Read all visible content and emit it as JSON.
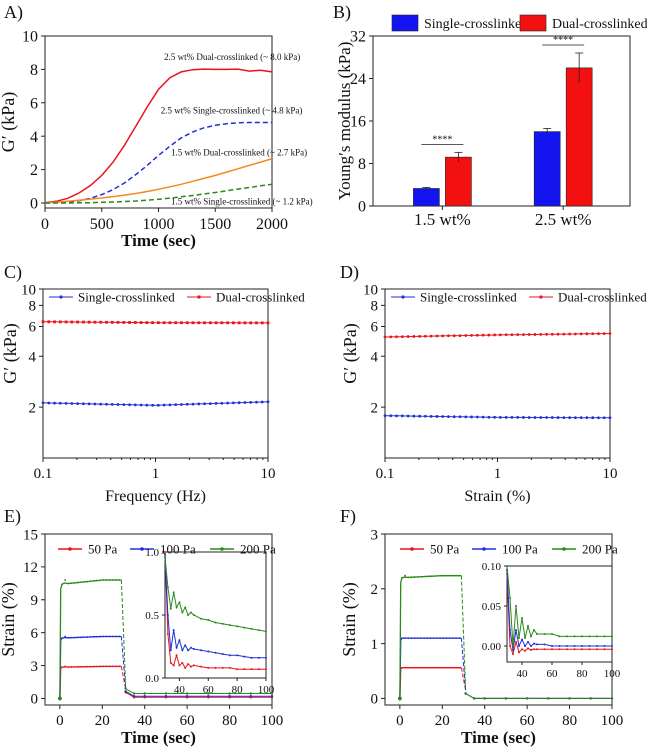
{
  "chart_data": [
    {
      "id": "A",
      "panel_label": "A)",
      "type": "line",
      "xlabel": "Time (sec)",
      "ylabel": "G′ (kPa)",
      "xlim": [
        0,
        2000
      ],
      "ylim": [
        -0.3,
        10
      ],
      "xticks": [
        0,
        500,
        1000,
        1500,
        2000
      ],
      "yticks": [
        0,
        2,
        4,
        6,
        8,
        10
      ],
      "series": [
        {
          "name": "2.5 wt% Dual-crosslinked",
          "color": "#e8141c",
          "dash": "",
          "label": "2.5 wt% Dual-crosslinked  (~ 8.0 kPa)",
          "label_x": 1050,
          "label_y": 8.55,
          "x": [
            0,
            100,
            200,
            300,
            400,
            500,
            600,
            700,
            800,
            900,
            1000,
            1100,
            1200,
            1300,
            1400,
            1500,
            1600,
            1700,
            1800,
            1900,
            2000
          ],
          "y": [
            0.02,
            0.1,
            0.28,
            0.6,
            1.05,
            1.65,
            2.45,
            3.45,
            4.6,
            5.75,
            6.8,
            7.5,
            7.85,
            7.98,
            8.02,
            8.0,
            8.0,
            8.02,
            7.9,
            7.95,
            7.85
          ]
        },
        {
          "name": "2.5 wt% Single-crosslinked",
          "color": "#2030d8",
          "dash": "5,3",
          "label": "2.5 wt% Single-crosslinked (~ 4.8 kPa)",
          "label_x": 1020,
          "label_y": 5.35,
          "x": [
            0,
            100,
            200,
            300,
            400,
            500,
            600,
            700,
            800,
            900,
            1000,
            1100,
            1200,
            1300,
            1400,
            1500,
            1600,
            1700,
            1800,
            1900,
            2000
          ],
          "y": [
            0,
            0.02,
            0.06,
            0.14,
            0.28,
            0.5,
            0.8,
            1.2,
            1.7,
            2.25,
            2.85,
            3.4,
            3.9,
            4.25,
            4.5,
            4.65,
            4.75,
            4.8,
            4.82,
            4.82,
            4.82
          ]
        },
        {
          "name": "1.5 wt% Dual-crosslinked",
          "color": "#f58a1a",
          "dash": "",
          "label": "1.5 wt% Dual-crosslinked (~ 2.7 kPa)",
          "label_x": 1110,
          "label_y": 2.85,
          "x": [
            0,
            100,
            200,
            300,
            400,
            500,
            600,
            700,
            800,
            900,
            1000,
            1100,
            1200,
            1300,
            1400,
            1500,
            1600,
            1700,
            1800,
            1900,
            2000
          ],
          "y": [
            0.02,
            0.05,
            0.1,
            0.16,
            0.23,
            0.3,
            0.38,
            0.47,
            0.57,
            0.69,
            0.82,
            0.97,
            1.12,
            1.3,
            1.47,
            1.65,
            1.85,
            2.05,
            2.25,
            2.45,
            2.65
          ]
        },
        {
          "name": "1.5 wt% Single-crosslinked",
          "color": "#2a8a1a",
          "dash": "5,3",
          "label": "1.5 wt% Single-crosslinked (~ 1.2 kPa)",
          "label_x": 1110,
          "label_y": -0.08,
          "x": [
            0,
            100,
            200,
            300,
            400,
            500,
            600,
            700,
            800,
            900,
            1000,
            1100,
            1200,
            1300,
            1400,
            1500,
            1600,
            1700,
            1800,
            1900,
            2000
          ],
          "y": [
            0,
            0,
            0,
            0.01,
            0.02,
            0.04,
            0.06,
            0.09,
            0.12,
            0.17,
            0.22,
            0.29,
            0.37,
            0.45,
            0.54,
            0.63,
            0.73,
            0.83,
            0.93,
            1.03,
            1.12
          ]
        }
      ]
    },
    {
      "id": "B",
      "panel_label": "B)",
      "type": "bar",
      "ylabel": "Young′s modulus (kPa)",
      "categories": [
        "1.5 wt%",
        "2.5 wt%"
      ],
      "ylim": [
        0,
        32
      ],
      "yticks": [
        0,
        8,
        16,
        24,
        32
      ],
      "series": [
        {
          "name": "Single-crosslinked",
          "color": "#1414f0",
          "values": [
            3.3,
            14.0
          ],
          "errors": [
            0.2,
            0.6
          ]
        },
        {
          "name": "Dual-crosslinked",
          "color": "#f21010",
          "values": [
            9.2,
            26.0
          ],
          "errors": [
            0.9,
            2.8
          ]
        }
      ],
      "significance": [
        {
          "category": 0,
          "label": "****",
          "y": 11.6
        },
        {
          "category": 1,
          "label": "****",
          "y": 30.3
        }
      ]
    },
    {
      "id": "C",
      "panel_label": "C)",
      "type": "scatter",
      "xlabel": "Frequency (Hz)",
      "ylabel": "G′ (kPa)",
      "xscale": "log",
      "yscale": "log",
      "xlim": [
        0.1,
        10
      ],
      "ylim": [
        1,
        10
      ],
      "xticks": [
        0.1,
        1,
        10
      ],
      "xtick_labels": [
        "0.1",
        "1",
        "10"
      ],
      "yticks": [
        2,
        4,
        6,
        8,
        10
      ],
      "ytick_labels": [
        "2",
        "4",
        "6",
        "8",
        "10"
      ],
      "series": [
        {
          "name": "Single-crosslinked",
          "color": "#2030d8",
          "marker": "dot",
          "y_start": 2.12,
          "y_mid": 2.05,
          "y_end": 2.15,
          "n": 40
        },
        {
          "name": "Dual-crosslinked",
          "color": "#e8141c",
          "marker": "square",
          "y_start": 6.4,
          "y_mid": 6.32,
          "y_end": 6.3,
          "n": 40
        }
      ]
    },
    {
      "id": "D",
      "panel_label": "D)",
      "type": "scatter",
      "xlabel": "Strain (%)",
      "ylabel": "G′ (kPa)",
      "xscale": "log",
      "yscale": "log",
      "xlim": [
        0.1,
        10
      ],
      "ylim": [
        1,
        10
      ],
      "xticks": [
        0.1,
        1,
        10
      ],
      "xtick_labels": [
        "0.1",
        "1",
        "10"
      ],
      "yticks": [
        2,
        4,
        6,
        8,
        10
      ],
      "ytick_labels": [
        "2",
        "4",
        "6",
        "8",
        "10"
      ],
      "series": [
        {
          "name": "Single-crosslinked",
          "color": "#2030d8",
          "marker": "dot",
          "y_start": 1.78,
          "y_mid": 1.74,
          "y_end": 1.73,
          "n": 40
        },
        {
          "name": "Dual-crosslinked",
          "color": "#e8141c",
          "marker": "dot",
          "y_start": 5.2,
          "y_mid": 5.35,
          "y_end": 5.45,
          "n": 40
        }
      ]
    },
    {
      "id": "E",
      "panel_label": "E)",
      "type": "line",
      "xlabel": "Time (sec)",
      "ylabel": "Strain (%)",
      "xlim": [
        -7,
        100
      ],
      "ylim": [
        -0.6,
        15
      ],
      "xticks": [
        0,
        20,
        40,
        60,
        80,
        100
      ],
      "yticks": [
        0,
        3,
        6,
        9,
        12,
        15
      ],
      "series": [
        {
          "name": "50 Pa",
          "color": "#e8141c",
          "plateau": [
            2.85,
            2.92
          ],
          "tail": 0.1
        },
        {
          "name": "100 Pa",
          "color": "#2030d8",
          "plateau": [
            5.5,
            5.65
          ],
          "tail": 0.2
        },
        {
          "name": "200 Pa",
          "color": "#2a8a1a",
          "plateau": [
            10.4,
            10.8
          ],
          "tail": 0.45
        }
      ],
      "inset": {
        "xlim": [
          30,
          100
        ],
        "ylim": [
          0,
          1.0
        ],
        "xticks": [
          40,
          60,
          80,
          100
        ],
        "yticks": [
          0.0,
          0.5,
          1.0
        ],
        "ytick_labels": [
          "0.0",
          "0.5",
          "1.0"
        ],
        "series": [
          {
            "name": "50 Pa",
            "color": "#e8141c",
            "x": [
              30,
              32,
              34,
              36,
              38,
              40,
              42,
              44,
              46,
              48,
              50,
              55,
              60,
              65,
              70,
              75,
              80,
              85,
              90,
              95,
              100
            ],
            "y": [
              1.0,
              0.35,
              0.12,
              0.1,
              0.18,
              0.1,
              0.12,
              0.08,
              0.11,
              0.09,
              0.1,
              0.09,
              0.08,
              0.08,
              0.08,
              0.08,
              0.07,
              0.07,
              0.07,
              0.07,
              0.07
            ]
          },
          {
            "name": "100 Pa",
            "color": "#2030d8",
            "x": [
              30,
              32,
              34,
              36,
              38,
              40,
              42,
              44,
              46,
              48,
              50,
              55,
              60,
              65,
              70,
              75,
              80,
              85,
              90,
              95,
              100
            ],
            "y": [
              0.98,
              0.5,
              0.22,
              0.38,
              0.24,
              0.3,
              0.22,
              0.26,
              0.22,
              0.24,
              0.23,
              0.22,
              0.21,
              0.2,
              0.19,
              0.18,
              0.18,
              0.17,
              0.16,
              0.16,
              0.16
            ]
          },
          {
            "name": "200 Pa",
            "color": "#2a8a1a",
            "x": [
              30,
              32,
              34,
              36,
              38,
              40,
              42,
              44,
              46,
              48,
              50,
              55,
              60,
              65,
              70,
              75,
              80,
              85,
              90,
              95,
              100
            ],
            "y": [
              0.96,
              0.72,
              0.55,
              0.68,
              0.56,
              0.6,
              0.52,
              0.56,
              0.5,
              0.52,
              0.5,
              0.47,
              0.46,
              0.44,
              0.43,
              0.42,
              0.41,
              0.4,
              0.39,
              0.38,
              0.37
            ]
          }
        ]
      }
    },
    {
      "id": "F",
      "panel_label": "F)",
      "type": "line",
      "xlabel": "Time (sec)",
      "ylabel": "Strain (%)",
      "xlim": [
        -7,
        100
      ],
      "ylim": [
        -0.12,
        3
      ],
      "xticks": [
        0,
        20,
        40,
        60,
        80,
        100
      ],
      "yticks": [
        0,
        1,
        2,
        3
      ],
      "series": [
        {
          "name": "50 Pa",
          "color": "#e8141c",
          "plateau": [
            0.56,
            0.56
          ],
          "tail": 0.0
        },
        {
          "name": "100 Pa",
          "color": "#2030d8",
          "plateau": [
            1.1,
            1.1
          ],
          "tail": 0.0
        },
        {
          "name": "200 Pa",
          "color": "#2a8a1a",
          "plateau": [
            2.2,
            2.24
          ],
          "tail": 0.0
        }
      ],
      "inset": {
        "xlim": [
          30,
          100
        ],
        "ylim": [
          -0.02,
          0.1
        ],
        "xticks": [
          40,
          60,
          80,
          100
        ],
        "yticks": [
          0.0,
          0.05,
          0.1
        ],
        "ytick_labels": [
          "0.00",
          "0.05",
          "0.10"
        ],
        "series": [
          {
            "name": "50 Pa",
            "color": "#e8141c",
            "x": [
              30,
              32,
              34,
              36,
              38,
              40,
              42,
              44,
              46,
              48,
              50,
              55,
              60,
              65,
              70,
              75,
              80,
              85,
              90,
              95,
              100
            ],
            "y": [
              0.09,
              0.0,
              -0.01,
              0.005,
              -0.008,
              -0.004,
              -0.006,
              -0.003,
              -0.005,
              -0.004,
              -0.004,
              -0.004,
              -0.004,
              -0.004,
              -0.004,
              -0.004,
              -0.004,
              -0.004,
              -0.004,
              -0.004,
              -0.004
            ]
          },
          {
            "name": "100 Pa",
            "color": "#2030d8",
            "x": [
              30,
              32,
              34,
              36,
              38,
              40,
              42,
              44,
              46,
              48,
              50,
              55,
              60,
              65,
              70,
              75,
              80,
              85,
              90,
              95,
              100
            ],
            "y": [
              0.095,
              0.02,
              -0.005,
              0.02,
              0.0,
              0.008,
              0.0,
              0.005,
              0.0,
              0.003,
              0.002,
              0.002,
              0.0,
              0.0,
              0.0,
              0.0,
              0.0,
              0.0,
              0.0,
              0.0,
              0.0
            ]
          },
          {
            "name": "200 Pa",
            "color": "#2a8a1a",
            "x": [
              30,
              32,
              34,
              36,
              38,
              40,
              42,
              44,
              46,
              48,
              50,
              55,
              60,
              65,
              70,
              75,
              80,
              85,
              90,
              95,
              100
            ],
            "y": [
              0.1,
              0.06,
              0.0,
              0.05,
              0.01,
              0.035,
              0.01,
              0.025,
              0.012,
              0.02,
              0.015,
              0.015,
              0.015,
              0.012,
              0.012,
              0.012,
              0.012,
              0.012,
              0.012,
              0.012,
              0.012
            ]
          }
        ]
      }
    }
  ]
}
